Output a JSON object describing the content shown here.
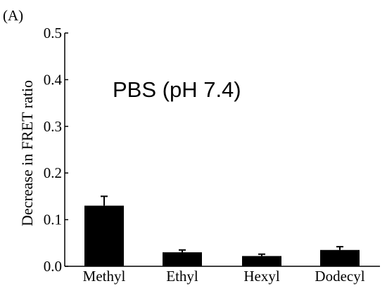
{
  "panel_label": "(A)",
  "chart_data": {
    "type": "bar",
    "title": "",
    "annotation": "PBS (pH 7.4)",
    "xlabel": "",
    "ylabel": "Decrease in FRET ratio",
    "ylim": [
      0.0,
      0.5
    ],
    "yticks": [
      "0.0",
      "0.1",
      "0.2",
      "0.3",
      "0.4",
      "0.5"
    ],
    "categories": [
      "Methyl",
      "Ethyl",
      "Hexyl",
      "Dodecyl"
    ],
    "values": [
      0.13,
      0.03,
      0.022,
      0.035
    ],
    "errors": [
      0.02,
      0.005,
      0.004,
      0.007
    ],
    "grid": false,
    "bar_color": "#000000"
  }
}
